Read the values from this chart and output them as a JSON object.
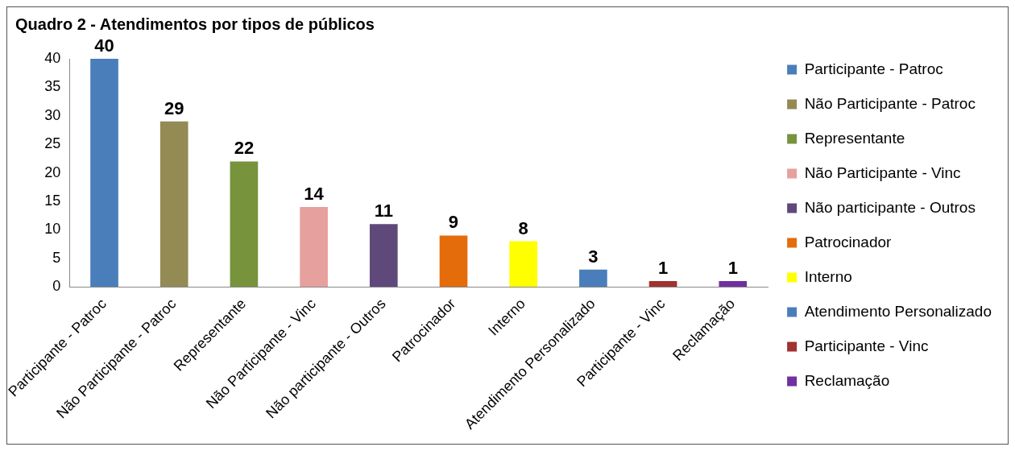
{
  "chart_data": {
    "type": "bar",
    "title": "Quadro 2 - Atendimentos por tipos de públicos",
    "categories": [
      "Participante - Patroc",
      "Não Participante - Patroc",
      "Representante",
      "Não Participante - Vinc",
      "Não participante - Outros",
      "Patrocinador",
      "Interno",
      "Atendimento Personalizado",
      "Participante - Vinc",
      "Reclamação"
    ],
    "series": [
      {
        "name": "Participante - Patroc",
        "color": "#4a7ebb",
        "values": [
          40,
          null,
          null,
          null,
          null,
          null,
          null,
          null,
          null,
          null
        ]
      },
      {
        "name": "Não Participante - Patroc",
        "color": "#948a54",
        "values": [
          null,
          29,
          null,
          null,
          null,
          null,
          null,
          null,
          null,
          null
        ]
      },
      {
        "name": "Representante",
        "color": "#77933c",
        "values": [
          null,
          null,
          22,
          null,
          null,
          null,
          null,
          null,
          null,
          null
        ]
      },
      {
        "name": "Não Participante - Vinc",
        "color": "#e6a09e",
        "values": [
          null,
          null,
          null,
          14,
          null,
          null,
          null,
          null,
          null,
          null
        ]
      },
      {
        "name": "Não participante - Outros",
        "color": "#5f497a",
        "values": [
          null,
          null,
          null,
          null,
          11,
          null,
          null,
          null,
          null,
          null
        ]
      },
      {
        "name": "Patrocinador",
        "color": "#e46c0a",
        "values": [
          null,
          null,
          null,
          null,
          null,
          9,
          null,
          null,
          null,
          null
        ]
      },
      {
        "name": "Interno",
        "color": "#ffff00",
        "values": [
          null,
          null,
          null,
          null,
          null,
          null,
          8,
          null,
          null,
          null
        ]
      },
      {
        "name": "Atendimento Personalizado",
        "color": "#4a7ebb",
        "values": [
          null,
          null,
          null,
          null,
          null,
          null,
          null,
          3,
          null,
          null
        ]
      },
      {
        "name": "Participante - Vinc",
        "color": "#a0322f",
        "values": [
          null,
          null,
          null,
          null,
          null,
          null,
          null,
          null,
          1,
          null
        ]
      },
      {
        "name": "Reclamação",
        "color": "#7030a0",
        "values": [
          null,
          null,
          null,
          null,
          null,
          null,
          null,
          null,
          null,
          1
        ]
      }
    ],
    "ylim": [
      0,
      40
    ],
    "yticks": [
      0,
      5,
      10,
      15,
      20,
      25,
      30,
      35,
      40
    ],
    "grid": false,
    "legend": "right",
    "data_labels": true
  }
}
